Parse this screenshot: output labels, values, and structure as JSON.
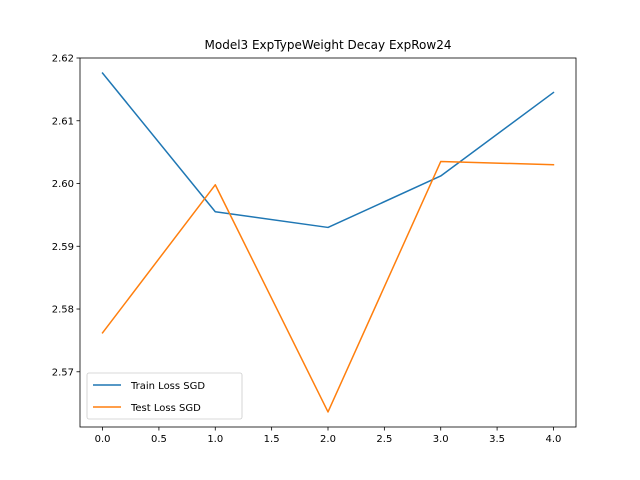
{
  "chart_data": {
    "type": "line",
    "title": "Model3 ExpTypeWeight Decay ExpRow24",
    "xlabel": "",
    "ylabel": "",
    "x": [
      0,
      1,
      2,
      3,
      4
    ],
    "xlim": [
      -0.2,
      4.2
    ],
    "ylim": [
      2.5612,
      2.62
    ],
    "xticks": [
      0.0,
      0.5,
      1.0,
      1.5,
      2.0,
      2.5,
      3.0,
      3.5,
      4.0
    ],
    "xtick_labels": [
      "0.0",
      "0.5",
      "1.0",
      "1.5",
      "2.0",
      "2.5",
      "3.0",
      "3.5",
      "4.0"
    ],
    "yticks": [
      2.57,
      2.58,
      2.59,
      2.6,
      2.61,
      2.62
    ],
    "ytick_labels": [
      "2.57",
      "2.58",
      "2.59",
      "2.60",
      "2.61",
      "2.62"
    ],
    "grid": false,
    "legend_position": "lower-left",
    "series": [
      {
        "name": "Train Loss SGD",
        "color": "#1f77b4",
        "values": [
          2.6176,
          2.5955,
          2.593,
          2.6012,
          2.6145
        ]
      },
      {
        "name": "Test Loss SGD",
        "color": "#ff7f0e",
        "values": [
          2.5762,
          2.5998,
          2.5636,
          2.6035,
          2.603
        ]
      }
    ]
  }
}
